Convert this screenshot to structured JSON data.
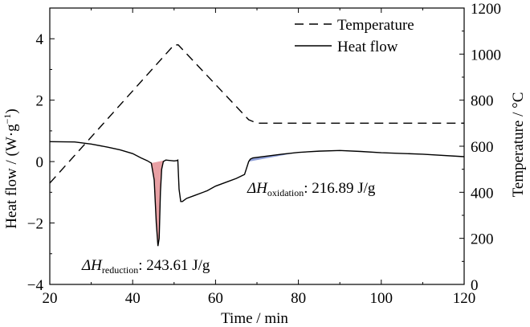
{
  "chart_data": {
    "type": "line",
    "xlabel": "Time / min",
    "ylabel_left": "Heat flow / (W·g",
    "ylabel_left_sup": "−1",
    "ylabel_left_tail": ")",
    "ylabel_right": "Temperature / °C",
    "xlim": [
      20,
      120
    ],
    "ylim_left": [
      -4,
      5
    ],
    "ylim_right": [
      0,
      1200
    ],
    "x_ticks": [
      20,
      40,
      60,
      80,
      100,
      120
    ],
    "y_left_ticks": [
      -4,
      -2,
      0,
      2,
      4
    ],
    "y_right_ticks": [
      0,
      200,
      400,
      600,
      800,
      1000,
      1200
    ],
    "legend": {
      "position": "top-right",
      "entries": [
        "Temperature",
        "Heat flow"
      ]
    },
    "colors": {
      "reduction_fill": "#e8a0a4",
      "oxidation_fill": "#8f9fd8"
    },
    "series": [
      {
        "name": "Temperature",
        "axis": "right",
        "style": "dashed",
        "x": [
          20,
          50,
          51,
          68,
          70,
          80,
          100,
          120
        ],
        "y": [
          440,
          1040,
          1040,
          715,
          700,
          700,
          700,
          700
        ]
      },
      {
        "name": "Heat flow",
        "axis": "left",
        "style": "solid",
        "x": [
          20,
          26,
          30,
          34,
          37,
          40,
          42,
          43.5,
          44.5,
          45.2,
          45.7,
          46.1,
          46.4,
          46.7,
          47.0,
          47.4,
          48,
          50,
          50.6,
          50.9,
          51.2,
          51.6,
          52,
          53,
          55,
          58,
          60,
          63,
          65,
          67,
          68,
          68.4,
          69,
          72,
          76,
          80,
          85,
          90,
          95,
          100,
          110,
          120
        ],
        "y": [
          0.65,
          0.64,
          0.57,
          0.47,
          0.38,
          0.26,
          0.12,
          0.03,
          -0.05,
          -0.6,
          -2.0,
          -2.75,
          -2.5,
          -1.0,
          -0.25,
          0.0,
          0.05,
          0.02,
          0.03,
          0.05,
          -0.9,
          -1.3,
          -1.3,
          -1.2,
          -1.1,
          -0.95,
          -0.8,
          -0.65,
          -0.55,
          -0.42,
          0.0,
          0.08,
          0.12,
          0.17,
          0.24,
          0.3,
          0.34,
          0.36,
          0.33,
          0.29,
          0.24,
          0.16
        ]
      }
    ],
    "annotations": [
      {
        "id": "reduction",
        "prefix": "ΔH",
        "subscript": "reduction",
        "value": ": 243.61 J/g",
        "region_x": [
          44.5,
          48
        ]
      },
      {
        "id": "oxidation",
        "prefix": "ΔH",
        "subscript": "oxidation",
        "value": ": 216.89 J/g",
        "region_x": [
          68,
          80
        ]
      }
    ]
  }
}
